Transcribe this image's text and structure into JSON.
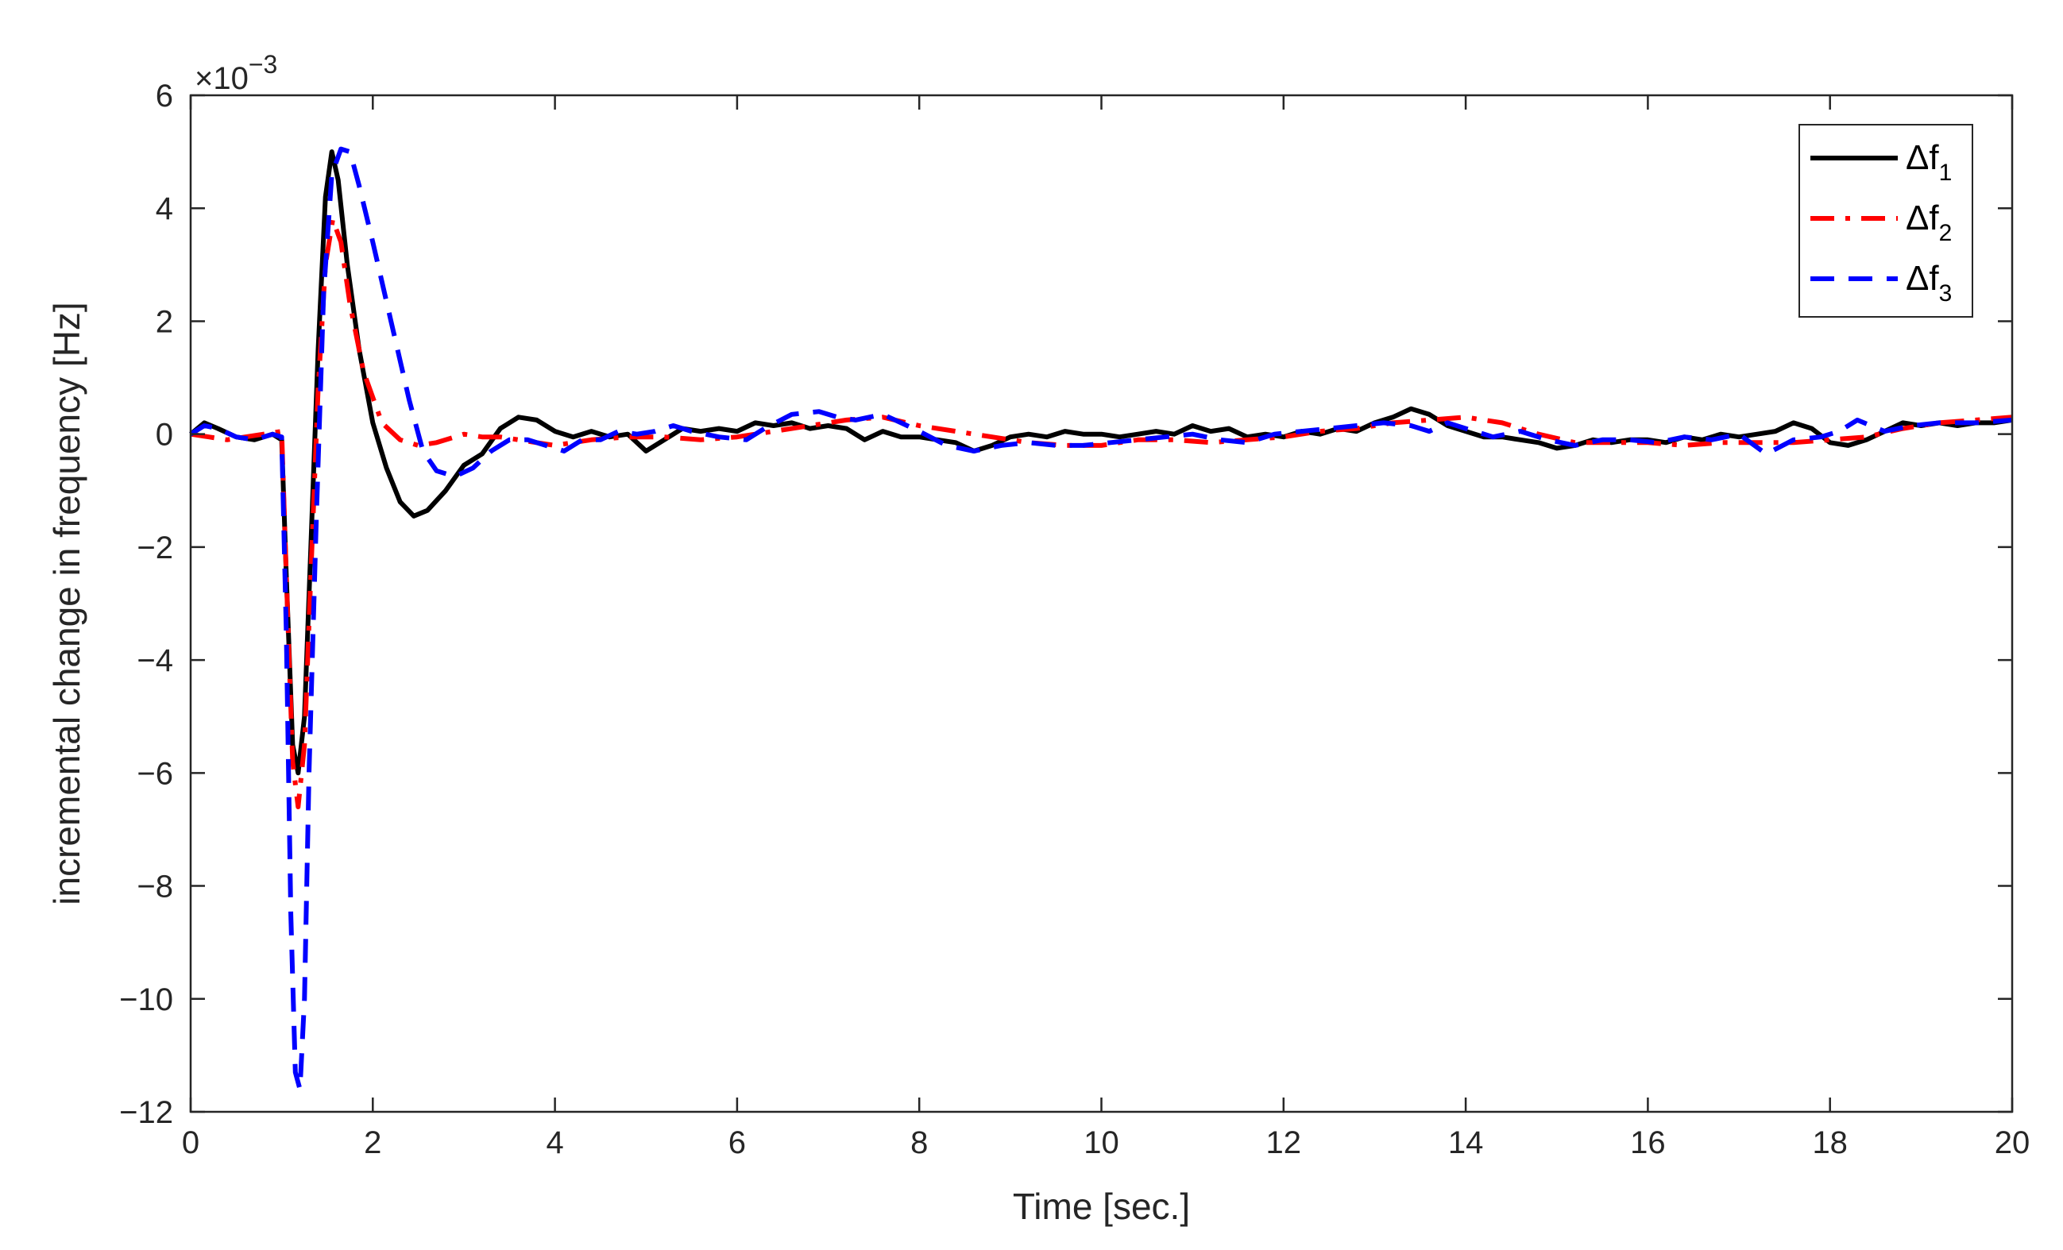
{
  "chart_data": {
    "type": "line",
    "xlabel": "Time [sec.]",
    "ylabel": "incremental change in frequency [Hz]",
    "y_exponent_label": "×10",
    "y_exponent_power": "−3",
    "xlim": [
      0,
      20
    ],
    "ylim": [
      -12,
      6
    ],
    "x_ticks": [
      0,
      2,
      4,
      6,
      8,
      10,
      12,
      14,
      16,
      18,
      20
    ],
    "x_tick_labels": [
      "0",
      "2",
      "4",
      "6",
      "8",
      "10",
      "12",
      "14",
      "16",
      "18",
      "20"
    ],
    "y_ticks": [
      -12,
      -10,
      -8,
      -6,
      -4,
      -2,
      0,
      2,
      4,
      6
    ],
    "y_tick_labels": [
      "−12",
      "−10",
      "−8",
      "−6",
      "−4",
      "−2",
      "0",
      "2",
      "4",
      "6"
    ],
    "grid": false,
    "legend_position": "top-right",
    "series": [
      {
        "name": "Δf",
        "subscript": "1",
        "color": "#000000",
        "dash": "solid",
        "points": [
          [
            0,
            0
          ],
          [
            0.15,
            0.2
          ],
          [
            0.3,
            0.1
          ],
          [
            0.5,
            -0.05
          ],
          [
            0.7,
            -0.1
          ],
          [
            0.9,
            0
          ],
          [
            1.0,
            -0.1
          ],
          [
            1.05,
            -2.5
          ],
          [
            1.12,
            -5.5
          ],
          [
            1.18,
            -6.0
          ],
          [
            1.25,
            -5.0
          ],
          [
            1.32,
            -2.0
          ],
          [
            1.4,
            1.5
          ],
          [
            1.48,
            4.2
          ],
          [
            1.55,
            5.0
          ],
          [
            1.62,
            4.5
          ],
          [
            1.72,
            3.0
          ],
          [
            1.85,
            1.5
          ],
          [
            2.0,
            0.2
          ],
          [
            2.15,
            -0.6
          ],
          [
            2.3,
            -1.2
          ],
          [
            2.45,
            -1.45
          ],
          [
            2.6,
            -1.35
          ],
          [
            2.8,
            -1.0
          ],
          [
            3.0,
            -0.55
          ],
          [
            3.2,
            -0.35
          ],
          [
            3.4,
            0.1
          ],
          [
            3.6,
            0.3
          ],
          [
            3.8,
            0.25
          ],
          [
            4.0,
            0.05
          ],
          [
            4.2,
            -0.05
          ],
          [
            4.4,
            0.05
          ],
          [
            4.6,
            -0.05
          ],
          [
            4.8,
            0.0
          ],
          [
            5.0,
            -0.3
          ],
          [
            5.2,
            -0.1
          ],
          [
            5.4,
            0.1
          ],
          [
            5.6,
            0.05
          ],
          [
            5.8,
            0.1
          ],
          [
            6.0,
            0.05
          ],
          [
            6.2,
            0.2
          ],
          [
            6.4,
            0.15
          ],
          [
            6.6,
            0.2
          ],
          [
            6.8,
            0.1
          ],
          [
            7.0,
            0.15
          ],
          [
            7.2,
            0.1
          ],
          [
            7.4,
            -0.1
          ],
          [
            7.6,
            0.05
          ],
          [
            7.8,
            -0.05
          ],
          [
            8.0,
            -0.05
          ],
          [
            8.2,
            -0.1
          ],
          [
            8.4,
            -0.15
          ],
          [
            8.6,
            -0.3
          ],
          [
            8.8,
            -0.2
          ],
          [
            9.0,
            -0.05
          ],
          [
            9.2,
            0.0
          ],
          [
            9.4,
            -0.05
          ],
          [
            9.6,
            0.05
          ],
          [
            9.8,
            0.0
          ],
          [
            10.0,
            0.0
          ],
          [
            10.2,
            -0.05
          ],
          [
            10.4,
            0.0
          ],
          [
            10.6,
            0.05
          ],
          [
            10.8,
            0.0
          ],
          [
            11.0,
            0.15
          ],
          [
            11.2,
            0.05
          ],
          [
            11.4,
            0.1
          ],
          [
            11.6,
            -0.05
          ],
          [
            11.8,
            0.0
          ],
          [
            12.0,
            -0.05
          ],
          [
            12.2,
            0.05
          ],
          [
            12.4,
            0.0
          ],
          [
            12.6,
            0.1
          ],
          [
            12.8,
            0.05
          ],
          [
            13.0,
            0.2
          ],
          [
            13.2,
            0.3
          ],
          [
            13.4,
            0.45
          ],
          [
            13.6,
            0.35
          ],
          [
            13.8,
            0.15
          ],
          [
            14.0,
            0.05
          ],
          [
            14.2,
            -0.05
          ],
          [
            14.4,
            -0.05
          ],
          [
            14.6,
            -0.1
          ],
          [
            14.8,
            -0.15
          ],
          [
            15.0,
            -0.25
          ],
          [
            15.2,
            -0.2
          ],
          [
            15.4,
            -0.1
          ],
          [
            15.6,
            -0.15
          ],
          [
            15.8,
            -0.1
          ],
          [
            16.0,
            -0.1
          ],
          [
            16.2,
            -0.15
          ],
          [
            16.4,
            -0.05
          ],
          [
            16.6,
            -0.1
          ],
          [
            16.8,
            0.0
          ],
          [
            17.0,
            -0.05
          ],
          [
            17.2,
            0.0
          ],
          [
            17.4,
            0.05
          ],
          [
            17.6,
            0.2
          ],
          [
            17.8,
            0.1
          ],
          [
            18.0,
            -0.15
          ],
          [
            18.2,
            -0.2
          ],
          [
            18.4,
            -0.1
          ],
          [
            18.6,
            0.05
          ],
          [
            18.8,
            0.2
          ],
          [
            19.0,
            0.15
          ],
          [
            19.2,
            0.2
          ],
          [
            19.4,
            0.15
          ],
          [
            19.6,
            0.2
          ],
          [
            19.8,
            0.2
          ],
          [
            20.0,
            0.25
          ]
        ]
      },
      {
        "name": "Δf",
        "subscript": "2",
        "color": "#ff0000",
        "dash": "dashdot",
        "points": [
          [
            0,
            0
          ],
          [
            0.2,
            -0.05
          ],
          [
            0.4,
            -0.1
          ],
          [
            0.6,
            -0.05
          ],
          [
            0.8,
            0.0
          ],
          [
            1.0,
            0.05
          ],
          [
            1.05,
            -2.5
          ],
          [
            1.12,
            -5.8
          ],
          [
            1.18,
            -6.6
          ],
          [
            1.25,
            -5.5
          ],
          [
            1.32,
            -2.5
          ],
          [
            1.4,
            0.8
          ],
          [
            1.48,
            3.0
          ],
          [
            1.56,
            3.8
          ],
          [
            1.65,
            3.4
          ],
          [
            1.75,
            2.3
          ],
          [
            1.9,
            1.1
          ],
          [
            2.1,
            0.2
          ],
          [
            2.3,
            -0.1
          ],
          [
            2.5,
            -0.2
          ],
          [
            2.7,
            -0.15
          ],
          [
            3.0,
            0.0
          ],
          [
            3.2,
            -0.05
          ],
          [
            3.4,
            -0.05
          ],
          [
            3.6,
            -0.1
          ],
          [
            4.0,
            -0.2
          ],
          [
            4.2,
            -0.15
          ],
          [
            4.4,
            -0.1
          ],
          [
            4.8,
            -0.05
          ],
          [
            5.2,
            -0.05
          ],
          [
            5.6,
            -0.1
          ],
          [
            6.0,
            -0.05
          ],
          [
            6.4,
            0.05
          ],
          [
            6.8,
            0.15
          ],
          [
            7.2,
            0.25
          ],
          [
            7.6,
            0.3
          ],
          [
            8.0,
            0.15
          ],
          [
            8.4,
            0.05
          ],
          [
            8.8,
            -0.05
          ],
          [
            9.2,
            -0.15
          ],
          [
            9.6,
            -0.2
          ],
          [
            10.0,
            -0.2
          ],
          [
            10.4,
            -0.1
          ],
          [
            10.8,
            -0.1
          ],
          [
            11.2,
            -0.15
          ],
          [
            11.6,
            -0.1
          ],
          [
            12.0,
            -0.05
          ],
          [
            12.4,
            0.05
          ],
          [
            12.8,
            0.1
          ],
          [
            13.2,
            0.2
          ],
          [
            13.6,
            0.25
          ],
          [
            14.0,
            0.3
          ],
          [
            14.4,
            0.2
          ],
          [
            14.8,
            0.0
          ],
          [
            15.2,
            -0.15
          ],
          [
            15.6,
            -0.15
          ],
          [
            16.0,
            -0.15
          ],
          [
            16.4,
            -0.2
          ],
          [
            16.8,
            -0.15
          ],
          [
            17.2,
            -0.15
          ],
          [
            17.6,
            -0.15
          ],
          [
            18.0,
            -0.1
          ],
          [
            18.4,
            -0.05
          ],
          [
            18.8,
            0.1
          ],
          [
            19.2,
            0.2
          ],
          [
            19.6,
            0.25
          ],
          [
            20.0,
            0.3
          ]
        ]
      },
      {
        "name": "Δf",
        "subscript": "3",
        "color": "#0000ff",
        "dash": "dashed",
        "points": [
          [
            0,
            0
          ],
          [
            0.15,
            0.15
          ],
          [
            0.3,
            0.1
          ],
          [
            0.5,
            -0.05
          ],
          [
            0.7,
            -0.1
          ],
          [
            0.9,
            0.0
          ],
          [
            1.0,
            -0.05
          ],
          [
            1.05,
            -3.5
          ],
          [
            1.1,
            -8.5
          ],
          [
            1.15,
            -11.3
          ],
          [
            1.2,
            -11.6
          ],
          [
            1.25,
            -10.0
          ],
          [
            1.3,
            -6.0
          ],
          [
            1.38,
            -1.5
          ],
          [
            1.46,
            2.5
          ],
          [
            1.55,
            4.6
          ],
          [
            1.65,
            5.05
          ],
          [
            1.75,
            5.0
          ],
          [
            1.85,
            4.4
          ],
          [
            2.0,
            3.4
          ],
          [
            2.2,
            2.0
          ],
          [
            2.4,
            0.6
          ],
          [
            2.55,
            -0.3
          ],
          [
            2.7,
            -0.65
          ],
          [
            2.9,
            -0.75
          ],
          [
            3.1,
            -0.6
          ],
          [
            3.3,
            -0.3
          ],
          [
            3.5,
            -0.1
          ],
          [
            3.7,
            -0.1
          ],
          [
            3.9,
            -0.2
          ],
          [
            4.1,
            -0.3
          ],
          [
            4.3,
            -0.1
          ],
          [
            4.5,
            -0.1
          ],
          [
            4.7,
            0.05
          ],
          [
            4.9,
            0.0
          ],
          [
            5.1,
            0.05
          ],
          [
            5.3,
            0.15
          ],
          [
            5.5,
            0.05
          ],
          [
            5.8,
            -0.05
          ],
          [
            6.1,
            -0.1
          ],
          [
            6.3,
            0.1
          ],
          [
            6.6,
            0.35
          ],
          [
            6.9,
            0.4
          ],
          [
            7.1,
            0.3
          ],
          [
            7.3,
            0.25
          ],
          [
            7.6,
            0.35
          ],
          [
            7.8,
            0.2
          ],
          [
            8.0,
            0.05
          ],
          [
            8.3,
            -0.2
          ],
          [
            8.6,
            -0.3
          ],
          [
            8.9,
            -0.2
          ],
          [
            9.2,
            -0.15
          ],
          [
            9.5,
            -0.2
          ],
          [
            9.8,
            -0.2
          ],
          [
            10.1,
            -0.15
          ],
          [
            10.4,
            -0.1
          ],
          [
            10.7,
            -0.05
          ],
          [
            11.0,
            0.0
          ],
          [
            11.3,
            -0.1
          ],
          [
            11.6,
            -0.15
          ],
          [
            11.9,
            0.0
          ],
          [
            12.2,
            0.05
          ],
          [
            12.5,
            0.1
          ],
          [
            12.8,
            0.15
          ],
          [
            13.1,
            0.2
          ],
          [
            13.4,
            0.15
          ],
          [
            13.6,
            0.05
          ],
          [
            13.8,
            0.2
          ],
          [
            14.0,
            0.1
          ],
          [
            14.3,
            -0.05
          ],
          [
            14.6,
            0.05
          ],
          [
            14.9,
            -0.1
          ],
          [
            15.2,
            -0.2
          ],
          [
            15.5,
            -0.1
          ],
          [
            15.8,
            -0.1
          ],
          [
            16.1,
            -0.15
          ],
          [
            16.4,
            -0.05
          ],
          [
            16.7,
            -0.1
          ],
          [
            17.0,
            0.0
          ],
          [
            17.3,
            -0.35
          ],
          [
            17.6,
            -0.1
          ],
          [
            17.9,
            -0.05
          ],
          [
            18.1,
            0.05
          ],
          [
            18.3,
            0.25
          ],
          [
            18.6,
            0.05
          ],
          [
            18.9,
            0.15
          ],
          [
            19.2,
            0.2
          ],
          [
            19.6,
            0.2
          ],
          [
            20.0,
            0.25
          ]
        ]
      }
    ]
  }
}
